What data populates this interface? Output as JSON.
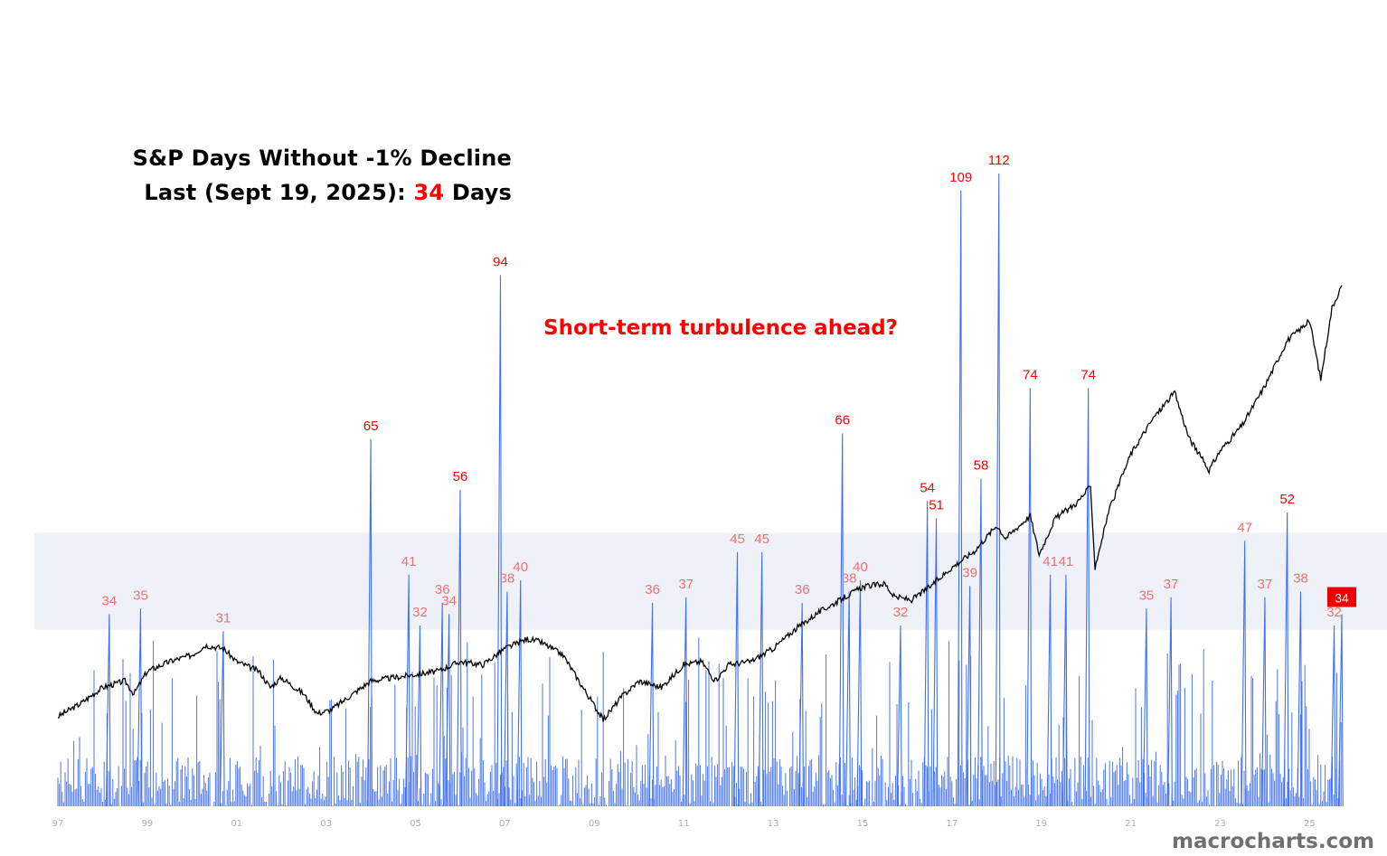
{
  "title": {
    "line1": "S&P Days Without -1% Decline",
    "line2_prefix": "Last (Sept 19, 2025): ",
    "line2_value": "34",
    "line2_suffix": " Days"
  },
  "annotation": "Short-term turbulence ahead?",
  "watermark": "macrocharts.com",
  "colors": {
    "bars": "#3f6ff5",
    "price_line": "#000000",
    "label_major": "#ff0000",
    "label_minor": "#f07070",
    "band": "#eef2f8",
    "latest_box": "#ee0000"
  },
  "chart_data": {
    "type": "bar",
    "series": [
      {
        "values_description": "",
        "name": ""
      }
    ],
    "x_tick_labels": [
      "97",
      "99",
      "01",
      "03",
      "05",
      "07",
      "09",
      "11",
      "13",
      "15",
      "17",
      "19",
      "21",
      "23",
      "25"
    ],
    "x_range": [
      1997.0,
      2025.72
    ],
    "y_range": [
      0,
      120
    ],
    "band_range": [
      30,
      50
    ],
    "peaks": [
      {
        "x": 1998.15,
        "value": 34,
        "label": "34",
        "major": false
      },
      {
        "x": 1998.85,
        "value": 35,
        "label": "35",
        "major": false
      },
      {
        "x": 2000.7,
        "value": 31,
        "label": "31",
        "major": false
      },
      {
        "x": 2004.0,
        "value": 65,
        "label": "65",
        "major": true
      },
      {
        "x": 2004.85,
        "value": 41,
        "label": "41",
        "major": false
      },
      {
        "x": 2005.1,
        "value": 32,
        "label": "32",
        "major": false
      },
      {
        "x": 2005.6,
        "value": 36,
        "label": "36",
        "major": false
      },
      {
        "x": 2005.75,
        "value": 34,
        "label": "34",
        "major": false
      },
      {
        "x": 2006.0,
        "value": 56,
        "label": "56",
        "major": true
      },
      {
        "x": 2006.9,
        "value": 94,
        "label": "94",
        "major": true
      },
      {
        "x": 2007.05,
        "value": 38,
        "label": "38",
        "major": false
      },
      {
        "x": 2007.35,
        "value": 40,
        "label": "40",
        "major": false
      },
      {
        "x": 2010.3,
        "value": 36,
        "label": "36",
        "major": false
      },
      {
        "x": 2011.05,
        "value": 37,
        "label": "37",
        "major": false
      },
      {
        "x": 2012.2,
        "value": 45,
        "label": "45",
        "major": false
      },
      {
        "x": 2012.75,
        "value": 45,
        "label": "45",
        "major": false
      },
      {
        "x": 2013.65,
        "value": 36,
        "label": "36",
        "major": false
      },
      {
        "x": 2014.55,
        "value": 66,
        "label": "66",
        "major": true
      },
      {
        "x": 2014.7,
        "value": 38,
        "label": "38",
        "major": false
      },
      {
        "x": 2014.95,
        "value": 40,
        "label": "40",
        "major": false
      },
      {
        "x": 2015.85,
        "value": 32,
        "label": "32",
        "major": false
      },
      {
        "x": 2016.45,
        "value": 54,
        "label": "54",
        "major": true
      },
      {
        "x": 2016.65,
        "value": 51,
        "label": "51",
        "major": true
      },
      {
        "x": 2017.2,
        "value": 109,
        "label": "109",
        "major": true
      },
      {
        "x": 2017.4,
        "value": 39,
        "label": "39",
        "major": false
      },
      {
        "x": 2017.65,
        "value": 58,
        "label": "58",
        "major": true
      },
      {
        "x": 2018.05,
        "value": 112,
        "label": "112",
        "major": true
      },
      {
        "x": 2018.75,
        "value": 74,
        "label": "74",
        "major": true
      },
      {
        "x": 2019.2,
        "value": 41,
        "label": "41",
        "major": false
      },
      {
        "x": 2019.55,
        "value": 41,
        "label": "41",
        "major": false
      },
      {
        "x": 2020.05,
        "value": 74,
        "label": "74",
        "major": true
      },
      {
        "x": 2021.35,
        "value": 35,
        "label": "35",
        "major": false
      },
      {
        "x": 2021.9,
        "value": 37,
        "label": "37",
        "major": false
      },
      {
        "x": 2023.55,
        "value": 47,
        "label": "47",
        "major": false
      },
      {
        "x": 2024.0,
        "value": 37,
        "label": "37",
        "major": false
      },
      {
        "x": 2024.5,
        "value": 52,
        "label": "52",
        "major": true
      },
      {
        "x": 2024.8,
        "value": 38,
        "label": "38",
        "major": false
      },
      {
        "x": 2025.55,
        "value": 32,
        "label": "32",
        "major": false
      },
      {
        "x": 2025.72,
        "value": 34,
        "label": "34",
        "major": true,
        "latest": true
      }
    ],
    "price_series": {
      "name": "",
      "points": [
        [
          1997.0,
          1.0
        ],
        [
          1997.5,
          1.2
        ],
        [
          1998.0,
          1.45
        ],
        [
          1998.5,
          1.55
        ],
        [
          1998.7,
          1.35
        ],
        [
          1999.0,
          1.7
        ],
        [
          1999.5,
          1.85
        ],
        [
          2000.0,
          1.95
        ],
        [
          2000.3,
          2.1
        ],
        [
          2000.7,
          2.05
        ],
        [
          2001.0,
          1.85
        ],
        [
          2001.5,
          1.7
        ],
        [
          2001.75,
          1.45
        ],
        [
          2002.0,
          1.6
        ],
        [
          2002.5,
          1.35
        ],
        [
          2002.8,
          1.05
        ],
        [
          2003.1,
          1.1
        ],
        [
          2003.5,
          1.3
        ],
        [
          2004.0,
          1.55
        ],
        [
          2004.5,
          1.6
        ],
        [
          2005.0,
          1.65
        ],
        [
          2005.5,
          1.7
        ],
        [
          2006.0,
          1.85
        ],
        [
          2006.5,
          1.8
        ],
        [
          2007.0,
          2.05
        ],
        [
          2007.5,
          2.2
        ],
        [
          2007.8,
          2.15
        ],
        [
          2008.3,
          1.95
        ],
        [
          2008.7,
          1.5
        ],
        [
          2009.2,
          0.95
        ],
        [
          2009.6,
          1.3
        ],
        [
          2010.0,
          1.55
        ],
        [
          2010.5,
          1.45
        ],
        [
          2011.0,
          1.8
        ],
        [
          2011.4,
          1.85
        ],
        [
          2011.7,
          1.55
        ],
        [
          2012.0,
          1.8
        ],
        [
          2012.5,
          1.85
        ],
        [
          2013.0,
          2.05
        ],
        [
          2013.5,
          2.35
        ],
        [
          2014.0,
          2.6
        ],
        [
          2014.5,
          2.8
        ],
        [
          2015.0,
          3.0
        ],
        [
          2015.5,
          3.05
        ],
        [
          2015.7,
          2.85
        ],
        [
          2016.1,
          2.8
        ],
        [
          2016.5,
          3.0
        ],
        [
          2017.0,
          3.3
        ],
        [
          2017.5,
          3.55
        ],
        [
          2018.0,
          3.95
        ],
        [
          2018.2,
          3.75
        ],
        [
          2018.75,
          4.1
        ],
        [
          2018.95,
          3.5
        ],
        [
          2019.3,
          4.05
        ],
        [
          2019.8,
          4.3
        ],
        [
          2020.1,
          4.55
        ],
        [
          2020.2,
          3.3
        ],
        [
          2020.5,
          4.15
        ],
        [
          2021.0,
          5.05
        ],
        [
          2021.5,
          5.6
        ],
        [
          2021.98,
          6.0
        ],
        [
          2022.3,
          5.3
        ],
        [
          2022.75,
          4.8
        ],
        [
          2023.0,
          5.1
        ],
        [
          2023.5,
          5.5
        ],
        [
          2024.0,
          6.1
        ],
        [
          2024.5,
          6.8
        ],
        [
          2025.0,
          7.1
        ],
        [
          2025.25,
          6.2
        ],
        [
          2025.5,
          7.3
        ],
        [
          2025.72,
          7.65
        ]
      ]
    }
  }
}
